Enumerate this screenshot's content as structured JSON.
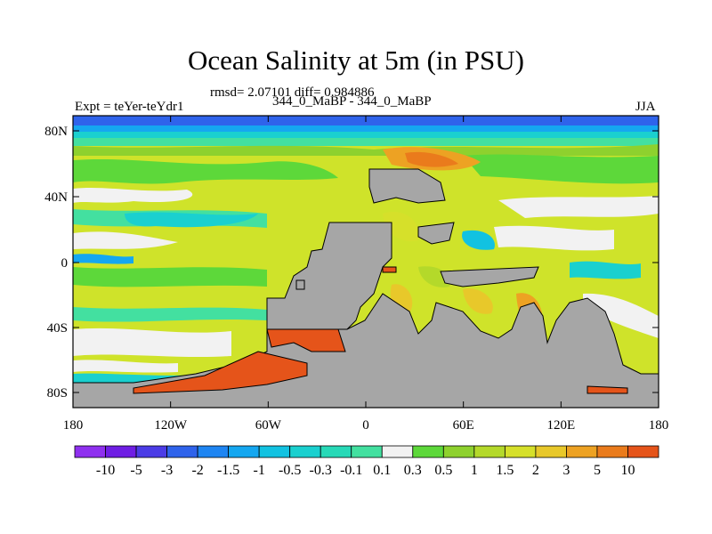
{
  "title": "Ocean Salinity at 5m (in PSU)",
  "stats": "rmsd= 2.07101 diff= 0.984886",
  "left_label": "Expt = teYer-teYdr1",
  "center_label": "344_0_MaBP - 344_0_MaBP",
  "right_label": "JJA",
  "lat_ticks": [
    "80N",
    "40N",
    "0",
    "40S",
    "80S"
  ],
  "lon_ticks": [
    "180",
    "120W",
    "60W",
    "0",
    "60E",
    "120E",
    "180"
  ],
  "colorbar": {
    "labels": [
      "-10",
      "-5",
      "-3",
      "-2",
      "-1.5",
      "-1",
      "-0.5",
      "-0.3",
      "-0.1",
      "0.1",
      "0.3",
      "0.5",
      "1",
      "1.5",
      "2",
      "3",
      "5",
      "10"
    ],
    "colors": [
      "#8f30ef",
      "#6f1ee4",
      "#4b3ce6",
      "#2f63eb",
      "#1e85f2",
      "#15a7f0",
      "#12c2e1",
      "#1ad0cf",
      "#27d9b7",
      "#43e0a0",
      "#f2f2f2",
      "#5dd83a",
      "#8ed12e",
      "#b4d92a",
      "#d6e02a",
      "#e8c82a",
      "#eda223",
      "#ea7b1c",
      "#e5541a"
    ]
  },
  "land_color": "#a6a6a6",
  "ocean_bg_color": "#cfe32a"
}
